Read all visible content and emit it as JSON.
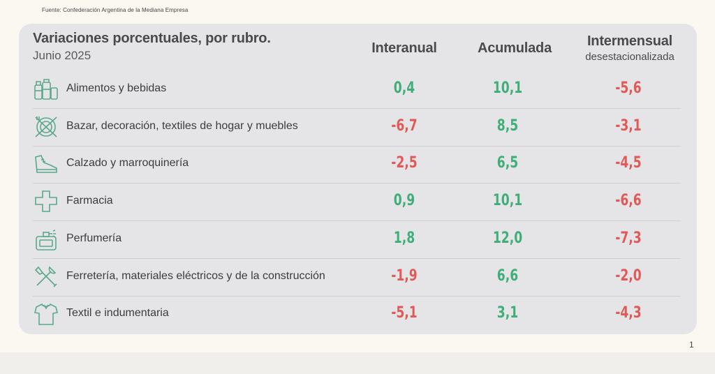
{
  "source": "Fuente: Confederación Argentina de la Mediana Empresa",
  "header": {
    "title": "Variaciones porcentuales, por rubro.",
    "subtitle": "Junio 2025",
    "col1": "Interanual",
    "col2": "Acumulada",
    "col3": "Intermensual",
    "col3_sub": "desestacionalizada"
  },
  "rows": [
    {
      "icon": "grocery-icon",
      "label": "Alimentos y bebidas",
      "interanual": "0,4",
      "acumulada": "10,1",
      "intermensual": "-5,6"
    },
    {
      "icon": "tableware-icon",
      "label": "Bazar, decoración, textiles de hogar y muebles",
      "interanual": "-6,7",
      "acumulada": "8,5",
      "intermensual": "-3,1"
    },
    {
      "icon": "shoe-icon",
      "label": "Calzado y marroquinería",
      "interanual": "-2,5",
      "acumulada": "6,5",
      "intermensual": "-4,5"
    },
    {
      "icon": "pharmacy-cross-icon",
      "label": "Farmacia",
      "interanual": "0,9",
      "acumulada": "10,1",
      "intermensual": "-6,6"
    },
    {
      "icon": "perfume-icon",
      "label": "Perfumería",
      "interanual": "1,8",
      "acumulada": "12,0",
      "intermensual": "-7,3"
    },
    {
      "icon": "tools-icon",
      "label": "Ferretería, materiales eléctricos y de la construcción",
      "interanual": "-1,9",
      "acumulada": "6,6",
      "intermensual": "-2,0"
    },
    {
      "icon": "shirt-icon",
      "label": "Textil e indumentaria",
      "interanual": "-5,1",
      "acumulada": "3,1",
      "intermensual": "-4,3"
    }
  ],
  "colors": {
    "positive": "#3fae78",
    "negative": "#e05a57",
    "icon": "#5aa88a"
  },
  "page_number": "1"
}
